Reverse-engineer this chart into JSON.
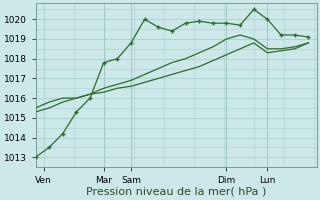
{
  "background_color": "#cce8e8",
  "grid_color": "#aacfcf",
  "line_color": "#2d6b2d",
  "ylim": [
    1012.5,
    1020.8
  ],
  "yticks": [
    1013,
    1014,
    1015,
    1016,
    1017,
    1018,
    1019,
    1020
  ],
  "xlabel": "Pression niveau de la mer( hPa )",
  "xlabel_fontsize": 8,
  "tick_fontsize": 6.5,
  "series": [
    {
      "x": [
        0,
        0.5,
        1,
        1.5,
        2,
        2.5,
        3,
        3.5,
        4,
        4.5,
        5,
        5.5,
        6,
        6.5,
        7,
        7.5,
        8,
        8.5,
        9,
        9.5,
        10
      ],
      "y": [
        1013.0,
        1013.5,
        1014.2,
        1015.3,
        1016.0,
        1017.8,
        1018.0,
        1018.8,
        1020.0,
        1019.6,
        1019.4,
        1019.8,
        1019.9,
        1019.8,
        1019.8,
        1019.7,
        1020.5,
        1020.0,
        1019.2,
        1019.2,
        1019.1
      ]
    },
    {
      "x": [
        0,
        0.5,
        1,
        1.5,
        2,
        2.5,
        3,
        3.5,
        4,
        4.5,
        5,
        5.5,
        6,
        6.5,
        7,
        7.5,
        8,
        8.5,
        9,
        9.5,
        10
      ],
      "y": [
        1015.5,
        1015.8,
        1016.0,
        1016.0,
        1016.2,
        1016.5,
        1016.7,
        1016.9,
        1017.2,
        1017.5,
        1017.8,
        1018.0,
        1018.3,
        1018.6,
        1019.0,
        1019.2,
        1019.0,
        1018.5,
        1018.5,
        1018.6,
        1018.8
      ]
    },
    {
      "x": [
        0,
        0.5,
        1,
        1.5,
        2,
        2.5,
        3,
        3.5,
        4,
        4.5,
        5,
        5.5,
        6,
        6.5,
        7,
        7.5,
        8,
        8.5,
        9,
        9.5,
        10
      ],
      "y": [
        1015.3,
        1015.5,
        1015.8,
        1016.0,
        1016.2,
        1016.3,
        1016.5,
        1016.6,
        1016.8,
        1017.0,
        1017.2,
        1017.4,
        1017.6,
        1017.9,
        1018.2,
        1018.5,
        1018.8,
        1018.3,
        1018.4,
        1018.5,
        1018.8
      ]
    }
  ],
  "vlines_x": [
    2.5,
    3.5,
    7.0,
    8.5
  ],
  "xtick_positions": [
    0.3,
    2.5,
    3.5,
    7.0,
    8.5
  ],
  "xtick_labels": [
    "Ven",
    "Mar",
    "Sam",
    "Dim",
    "Lun"
  ],
  "xlim": [
    0,
    10.3
  ]
}
